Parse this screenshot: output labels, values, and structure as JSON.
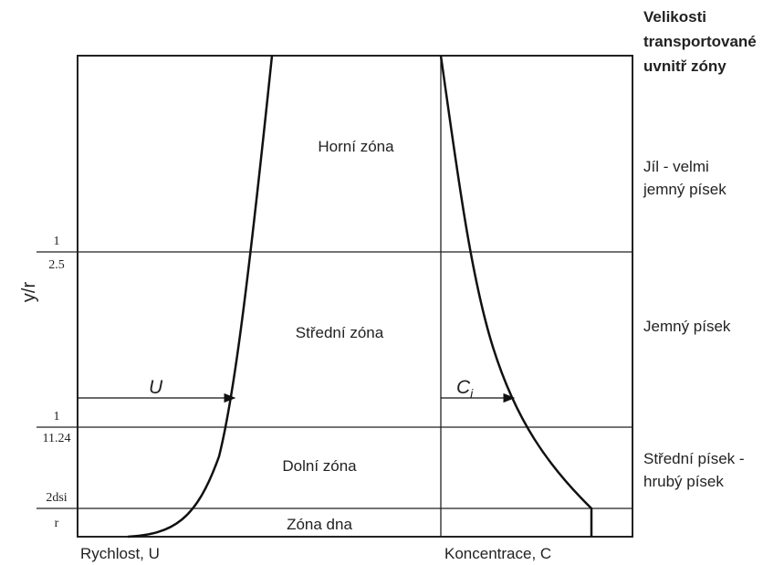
{
  "y_axis_label": "y/r",
  "zones": [
    "Horní zóna",
    "Střední zóna",
    "Dolní zóna",
    "Zóna dna"
  ],
  "fractions": [
    {
      "numerator": "1",
      "denominator": "2.5"
    },
    {
      "numerator": "1",
      "denominator": "11.24"
    },
    {
      "numerator": "2dsi",
      "denominator": "r"
    }
  ],
  "right_header": [
    "Velikosti",
    "transportované",
    "uvnitř zóny"
  ],
  "right_labels": [
    [
      "Jíl - velmi",
      "jemný písek"
    ],
    [
      "Jemný písek"
    ],
    [
      "Střední písek -",
      "hrubý písek"
    ]
  ],
  "arrows": [
    {
      "label": "U"
    },
    {
      "label": "C",
      "sub": "i"
    }
  ],
  "bottom_labels": [
    "Rychlost, U",
    "Koncentrace, C"
  ]
}
